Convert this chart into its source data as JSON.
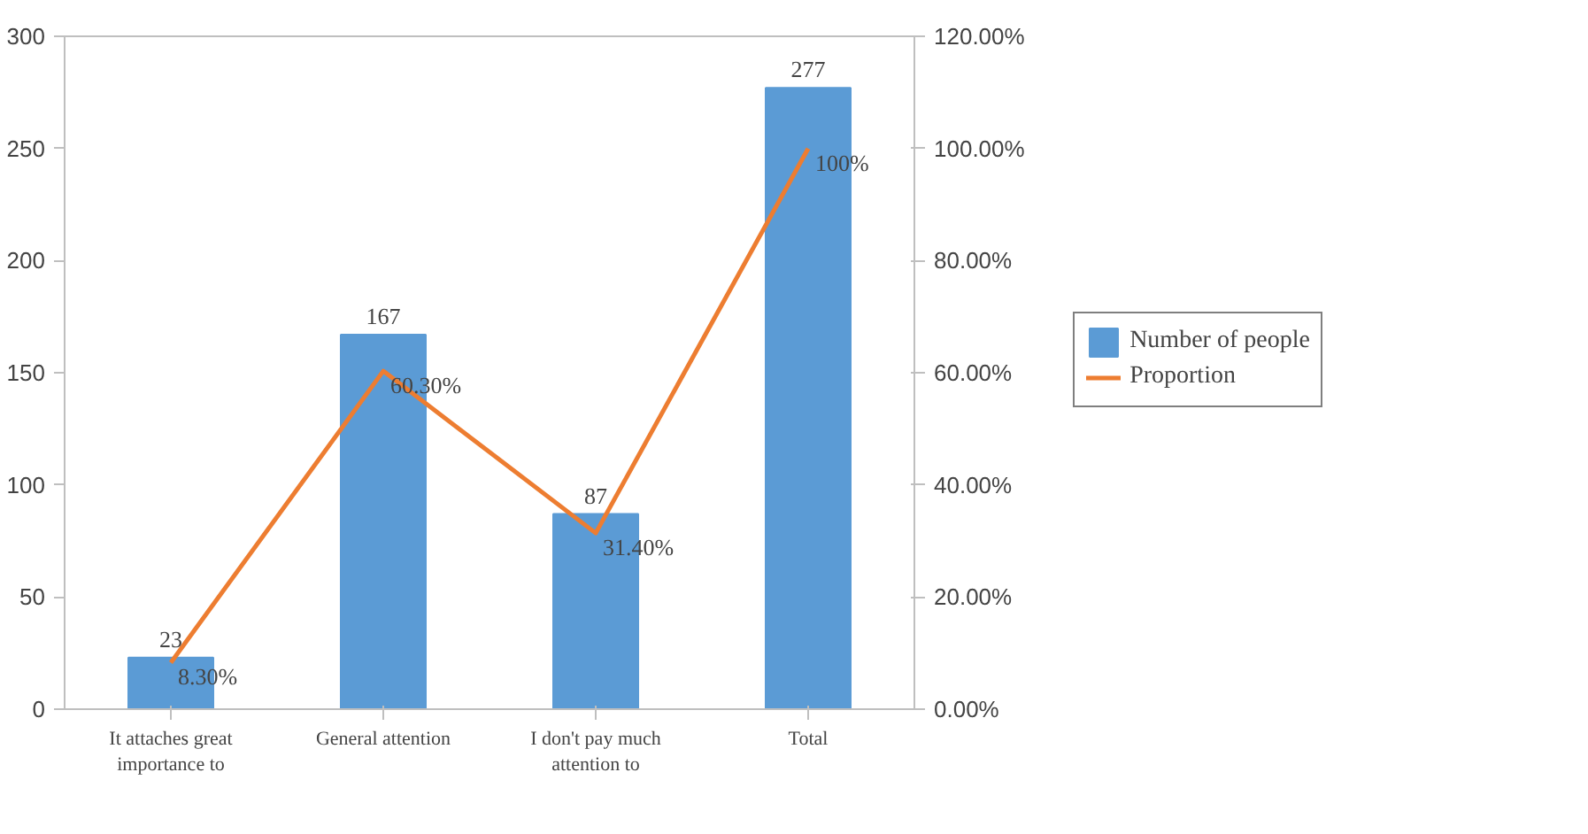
{
  "chart_data": {
    "type": "bar",
    "categories": [
      "It attaches great importance to",
      "General attention",
      "I don't pay much attention to",
      "Total"
    ],
    "series": [
      {
        "name": "Number of people",
        "color": "#5b9bd5",
        "values": [
          23,
          167,
          87,
          277
        ],
        "data_labels": true
      },
      {
        "name": "Proportion",
        "type": "line",
        "axis": "y2",
        "color": "#ed7d31",
        "values": [
          8.3,
          60.3,
          31.4,
          100
        ],
        "value_labels": [
          "8.30%",
          "60.30%",
          "31.40%",
          "100%"
        ],
        "marker": "none"
      }
    ],
    "ylim": [
      0,
      300
    ],
    "yticks": [
      0,
      50,
      100,
      150,
      200,
      250,
      300
    ],
    "y2lim": [
      0,
      120
    ],
    "y2ticks": [
      {
        "value": 0,
        "label": "0.00%"
      },
      {
        "value": 20,
        "label": "20.00%"
      },
      {
        "value": 40,
        "label": "40.00%"
      },
      {
        "value": 60,
        "label": "60.00%"
      },
      {
        "value": 80,
        "label": "80.00%"
      },
      {
        "value": 100,
        "label": "100.00%"
      },
      {
        "value": 120,
        "label": "120.00%"
      }
    ],
    "grid": false,
    "legend": "right"
  }
}
